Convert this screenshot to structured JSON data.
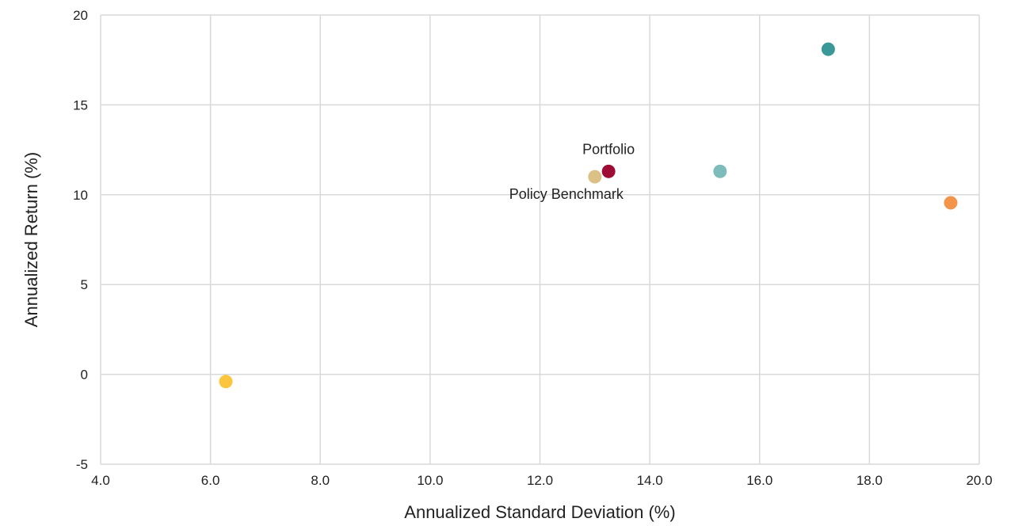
{
  "chart_data": {
    "type": "scatter",
    "title": "",
    "xlabel": "Annualized Standard Deviation (%)",
    "ylabel": "Annualized Return (%)",
    "xlim": [
      4.0,
      20.0
    ],
    "ylim": [
      -5,
      20
    ],
    "xticks": [
      4.0,
      6.0,
      8.0,
      10.0,
      12.0,
      14.0,
      16.0,
      18.0,
      20.0
    ],
    "xtick_labels": [
      "4.0",
      "6.0",
      "8.0",
      "10.0",
      "12.0",
      "14.0",
      "16.0",
      "18.0",
      "20.0"
    ],
    "yticks": [
      -5,
      0,
      5,
      10,
      15,
      20
    ],
    "ytick_labels": [
      "-5",
      "0",
      "5",
      "10",
      "15",
      "20"
    ],
    "grid": true,
    "legend": "none",
    "points": [
      {
        "x": 13.25,
        "y": 11.3,
        "color": "#9e0b34",
        "label": "Portfolio"
      },
      {
        "x": 13.0,
        "y": 11.0,
        "color": "#dcc186",
        "label": "Policy Benchmark"
      },
      {
        "x": 15.28,
        "y": 11.3,
        "color": "#7dbcba",
        "label": ""
      },
      {
        "x": 17.25,
        "y": 18.1,
        "color": "#3b9898",
        "label": ""
      },
      {
        "x": 19.48,
        "y": 9.55,
        "color": "#f2954a",
        "label": ""
      },
      {
        "x": 6.28,
        "y": -0.4,
        "color": "#fcc53e",
        "label": ""
      }
    ]
  }
}
